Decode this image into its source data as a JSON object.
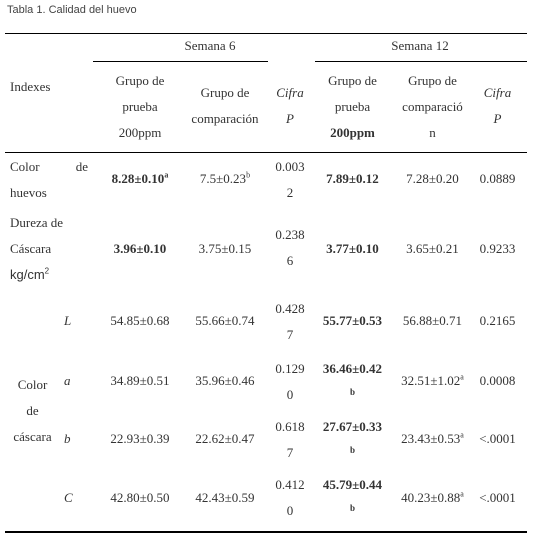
{
  "caption": "Tabla 1. Calidad del huevo",
  "header": {
    "week6": "Semana 6",
    "week12": "Semana 12",
    "indexes": "Indexes",
    "test_group": [
      "Grupo de",
      "prueba",
      "200ppm"
    ],
    "comparison_group_w6": [
      "Grupo de",
      "comparación"
    ],
    "comparison_group_w12": [
      "Grupo de",
      "comparació",
      "n"
    ],
    "cifra": "Cifra",
    "p": "P"
  },
  "rows": {
    "color_huevos": {
      "label_a": "Color",
      "label_a2": "de",
      "label_b": "huevos",
      "t6": "8.28±0.10",
      "t6_sup": "a",
      "c6": "7.5±0.23",
      "c6_sup": "b",
      "p6": [
        "0.003",
        "2"
      ],
      "t12": "7.89±0.12",
      "c12": "7.28±0.20",
      "p12": "0.0889"
    },
    "dureza": {
      "label": [
        "Dureza de",
        "Cáscara"
      ],
      "unit": "kg/cm",
      "unit_sup": "2",
      "t6": "3.96±0.10",
      "c6": "3.75±0.15",
      "p6": [
        "0.238",
        "6"
      ],
      "t12": "3.77±0.10",
      "c12": "3.65±0.21",
      "p12": "0.9233"
    },
    "shell_color_label": [
      "Color",
      "de",
      "cáscara"
    ],
    "L": {
      "sub": "L",
      "t6": "54.85±0.68",
      "c6": "55.66±0.74",
      "p6": [
        "0.428",
        "7"
      ],
      "t12": "55.77±0.53",
      "c12": "56.88±0.71",
      "p12": "0.2165"
    },
    "a": {
      "sub": "a",
      "t6": "34.89±0.51",
      "c6": "35.96±0.46",
      "p6": [
        "0.129",
        "0"
      ],
      "t12": "36.46±0.42",
      "t12_sup": "b",
      "c12": "32.51±1.02",
      "c12_sup": "a",
      "p12": "0.0008"
    },
    "b": {
      "sub": "b",
      "t6": "22.93±0.39",
      "c6": "22.62±0.47",
      "p6": [
        "0.618",
        "7"
      ],
      "t12": "27.67±0.33",
      "t12_sup": "b",
      "c12": "23.43±0.53",
      "c12_sup": "a",
      "p12": "<.0001"
    },
    "C": {
      "sub": "C",
      "t6": "42.80±0.50",
      "c6": "42.43±0.59",
      "p6": [
        "0.412",
        "0"
      ],
      "t12": "45.79±0.44",
      "t12_sup": "b",
      "c12": "40.23±0.88",
      "c12_sup": "a",
      "p12": "<.0001"
    }
  }
}
